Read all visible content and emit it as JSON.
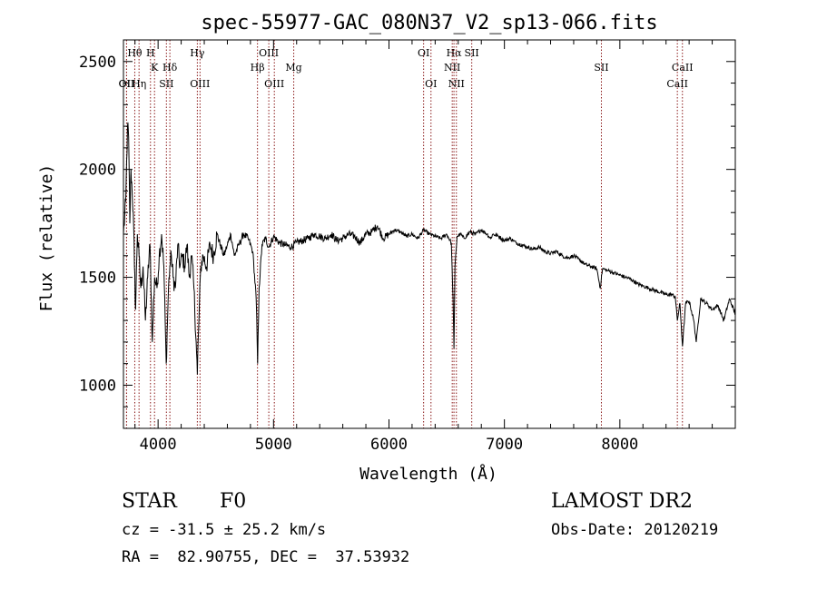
{
  "chart_data": {
    "type": "line",
    "title": "spec-55977-GAC_080N37_V2_sp13-066.fits",
    "xlabel": "Wavelength (Å)",
    "ylabel": "Flux (relative)",
    "xlim": [
      3700,
      9000
    ],
    "ylim": [
      800,
      2600
    ],
    "xticks": [
      "4000",
      "5000",
      "6000",
      "7000",
      "8000"
    ],
    "xtick_values": [
      4000,
      5000,
      6000,
      7000,
      8000
    ],
    "yticks": [
      "1000",
      "1500",
      "2000",
      "2500"
    ],
    "ytick_values": [
      1000,
      1500,
      2000,
      2500
    ],
    "grid": false,
    "line_color": "#000000",
    "marker_color": "#8b1a1a",
    "series": [
      {
        "x": [
          3700,
          3720,
          3735,
          3745,
          3755,
          3765,
          3775,
          3785,
          3795,
          3805,
          3820,
          3835,
          3850,
          3870,
          3890,
          3910,
          3930,
          3950,
          3970,
          3990,
          4010,
          4030,
          4050,
          4070,
          4090,
          4102,
          4115,
          4130,
          4150,
          4170,
          4190,
          4210,
          4230,
          4250,
          4270,
          4290,
          4310,
          4330,
          4340,
          4350,
          4370,
          4390,
          4420,
          4450,
          4480,
          4510,
          4540,
          4570,
          4600,
          4630,
          4660,
          4700,
          4740,
          4780,
          4820,
          4850,
          4862,
          4875,
          4900,
          4930,
          4960,
          5000,
          5050,
          5100,
          5150,
          5200,
          5250,
          5300,
          5350,
          5400,
          5450,
          5500,
          5550,
          5600,
          5650,
          5700,
          5750,
          5800,
          5850,
          5900,
          5950,
          6000,
          6050,
          6100,
          6150,
          6200,
          6250,
          6300,
          6350,
          6400,
          6450,
          6500,
          6540,
          6555,
          6563,
          6572,
          6590,
          6620,
          6650,
          6700,
          6750,
          6800,
          6850,
          6880,
          6900,
          6950,
          7000,
          7050,
          7100,
          7150,
          7200,
          7250,
          7300,
          7350,
          7400,
          7450,
          7500,
          7550,
          7600,
          7650,
          7700,
          7750,
          7800,
          7830,
          7850,
          7900,
          7950,
          8000,
          8050,
          8100,
          8150,
          8200,
          8250,
          8300,
          8350,
          8400,
          8450,
          8480,
          8498,
          8520,
          8542,
          8570,
          8600,
          8640,
          8662,
          8700,
          8750,
          8800,
          8850,
          8900,
          8950,
          9000
        ],
        "y": [
          1700,
          1850,
          2200,
          2150,
          1750,
          2000,
          1900,
          1800,
          1550,
          1350,
          1700,
          1600,
          1450,
          1550,
          1300,
          1500,
          1650,
          1200,
          1500,
          1450,
          1600,
          1700,
          1550,
          1100,
          1450,
          1550,
          1600,
          1500,
          1450,
          1650,
          1550,
          1600,
          1550,
          1650,
          1500,
          1600,
          1450,
          1200,
          1050,
          1250,
          1550,
          1600,
          1550,
          1650,
          1600,
          1700,
          1650,
          1600,
          1650,
          1700,
          1600,
          1650,
          1700,
          1680,
          1620,
          1400,
          1100,
          1450,
          1650,
          1680,
          1640,
          1690,
          1660,
          1650,
          1640,
          1660,
          1670,
          1680,
          1700,
          1690,
          1680,
          1700,
          1670,
          1680,
          1700,
          1690,
          1660,
          1700,
          1710,
          1740,
          1680,
          1700,
          1720,
          1710,
          1690,
          1700,
          1680,
          1720,
          1700,
          1690,
          1680,
          1700,
          1660,
          1400,
          1170,
          1550,
          1690,
          1700,
          1680,
          1710,
          1700,
          1720,
          1700,
          1680,
          1700,
          1690,
          1670,
          1680,
          1660,
          1650,
          1640,
          1630,
          1640,
          1620,
          1610,
          1620,
          1600,
          1590,
          1600,
          1580,
          1560,
          1550,
          1540,
          1450,
          1540,
          1530,
          1520,
          1510,
          1500,
          1490,
          1470,
          1460,
          1450,
          1440,
          1430,
          1420,
          1420,
          1410,
          1300,
          1380,
          1180,
          1380,
          1390,
          1300,
          1200,
          1400,
          1380,
          1350,
          1370,
          1300,
          1400,
          1330
        ]
      }
    ],
    "lines": [
      {
        "label": "OII",
        "x": 3727,
        "row": 2
      },
      {
        "label": "Hθ",
        "x": 3798,
        "row": 0
      },
      {
        "label": "OII",
        "x": 3727,
        "row": 3
      },
      {
        "label": "Hη",
        "x": 3835,
        "row": 3
      },
      {
        "label": "H",
        "x": 3934,
        "row": 0
      },
      {
        "label": "K",
        "x": 3969,
        "row": 1
      },
      {
        "label": "Hδ",
        "x": 4102,
        "row": 1
      },
      {
        "label": "SII",
        "x": 4072,
        "row": 2
      },
      {
        "label": "Hγ",
        "x": 4340,
        "row": 0
      },
      {
        "label": "OIII",
        "x": 4363,
        "row": 2
      },
      {
        "label": "Hβ",
        "x": 4861,
        "row": 1
      },
      {
        "label": "OIII",
        "x": 4959,
        "row": 0
      },
      {
        "label": "OIII",
        "x": 5007,
        "row": 2
      },
      {
        "label": "Mg",
        "x": 5175,
        "row": 1
      },
      {
        "label": "OI",
        "x": 6300,
        "row": 0
      },
      {
        "label": "OI",
        "x": 6364,
        "row": 2
      },
      {
        "label": "Hα",
        "x": 6563,
        "row": 0
      },
      {
        "label": "NII",
        "x": 6548,
        "row": 1
      },
      {
        "label": "NII",
        "x": 6584,
        "row": 2
      },
      {
        "label": "SII",
        "x": 6717,
        "row": 0
      },
      {
        "label": "SII",
        "x": 7840,
        "row": 1
      },
      {
        "label": "CaII",
        "x": 8542,
        "row": 1
      },
      {
        "label": "CaII",
        "x": 8498,
        "row": 2
      }
    ]
  },
  "footer": {
    "class_label": "STAR",
    "subclass": "F0",
    "survey": "LAMOST DR2",
    "cz": "cz = -31.5 ± 25.2 km/s",
    "obs_date": "Obs-Date: 20120219",
    "radec": "RA =  82.90755, DEC =  37.53932"
  }
}
